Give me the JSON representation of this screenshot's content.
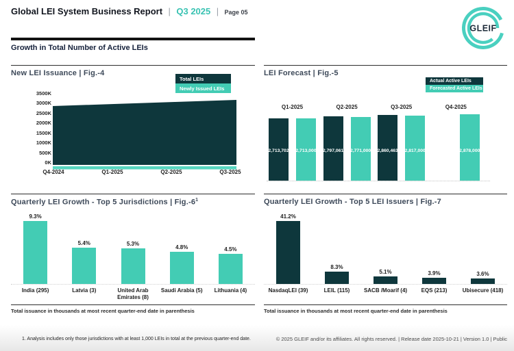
{
  "page": {
    "header": {
      "title": "Global LEI System Business Report",
      "divider": "|",
      "quarter": "Q3 2025",
      "page_label": "Page 05"
    },
    "logo": {
      "text": "GLEIF"
    },
    "section_heading": "Growth in Total Number of Active LEIs",
    "footnote": "1. Analysis includes only those jurisdictions with at least 1,000 LEIs in total at the previous quarter-end date.",
    "copyright": "© 2025 GLEIF and/or its affiliates. All rights reserved. | Release date 2025-10-21 | Version 1.0 | Public"
  },
  "colors": {
    "dark_teal": "#0E373C",
    "light_teal": "#43CCB4",
    "brand_teal_text": "#38C2B2",
    "logo_teal": "#4AD0C0"
  },
  "chart_data": [
    {
      "id": "fig4",
      "type": "area",
      "title": "New LEI Issuance | Fig.-4",
      "categories": [
        "Q4-2024",
        "Q1-2025",
        "Q2-2025",
        "Q3-2025"
      ],
      "series": [
        {
          "name": "Total LEIs",
          "color": "#0E373C",
          "values": [
            2900000,
            3000000,
            3100000,
            3200000
          ]
        },
        {
          "name": "Newly Issued LEIs",
          "color": "#43CCB4",
          "values": [
            75000,
            75000,
            75000,
            75000
          ]
        }
      ],
      "y_ticks": [
        "3500K",
        "3000K",
        "2500K",
        "2000K",
        "1500K",
        "1000K",
        "500K",
        "0K"
      ],
      "ylim": [
        0,
        3500000
      ],
      "legend_position": "top-right",
      "grid": false
    },
    {
      "id": "fig5",
      "type": "bar",
      "title": "LEI Forecast | Fig.-5",
      "categories": [
        "Q1-2025",
        "Q2-2025",
        "Q3-2025",
        "Q4-2025"
      ],
      "series": [
        {
          "name": "Actual Active LEIs",
          "color": "#0E373C",
          "values": [
            2713702,
            2797061,
            2860463,
            null
          ],
          "labels": [
            "2,713,702",
            "2,797,061",
            "2,860,463",
            null
          ]
        },
        {
          "name": "Forecasted Active LEIs",
          "color": "#43CCB4",
          "values": [
            2713000,
            2771000,
            2817000,
            2878000
          ],
          "labels": [
            "2,713,000",
            "2,771,000",
            "2,817,000",
            "2,878,000"
          ]
        }
      ],
      "ylim": [
        0,
        2878000
      ],
      "legend_position": "top-right",
      "grid": false
    },
    {
      "id": "fig6",
      "type": "bar",
      "title": "Quarterly LEI Growth - Top 5 Jurisdictions | Fig.-6",
      "title_superscript": "1",
      "categories": [
        "India (295)",
        "Latvia (3)",
        "United Arab Emirates (8)",
        "Saudi Arabia (5)",
        "Lithuania (4)"
      ],
      "values": [
        9.3,
        5.4,
        5.3,
        4.8,
        4.5
      ],
      "labels": [
        "9.3%",
        "5.4%",
        "5.3%",
        "4.8%",
        "4.5%"
      ],
      "bar_color": "#43CCB4",
      "ylim": [
        0,
        10
      ],
      "caption": "Total issuance in thousands at most recent quarter-end date in parenthesis"
    },
    {
      "id": "fig7",
      "type": "bar",
      "title": "Quarterly LEI Growth - Top 5 LEI Issuers | Fig.-7",
      "categories": [
        "NasdaqLEI (39)",
        "LEIL (115)",
        "SACB /Moarif (4)",
        "EQS (213)",
        "Ubisecure (418)"
      ],
      "values": [
        41.2,
        8.3,
        5.1,
        3.9,
        3.6
      ],
      "labels": [
        "41.2%",
        "8.3%",
        "5.1%",
        "3.9%",
        "3.6%"
      ],
      "bar_color": "#0E373C",
      "ylim": [
        0,
        45
      ],
      "caption": "Total issuance in thousands at most recent quarter-end date in parenthesis"
    }
  ]
}
